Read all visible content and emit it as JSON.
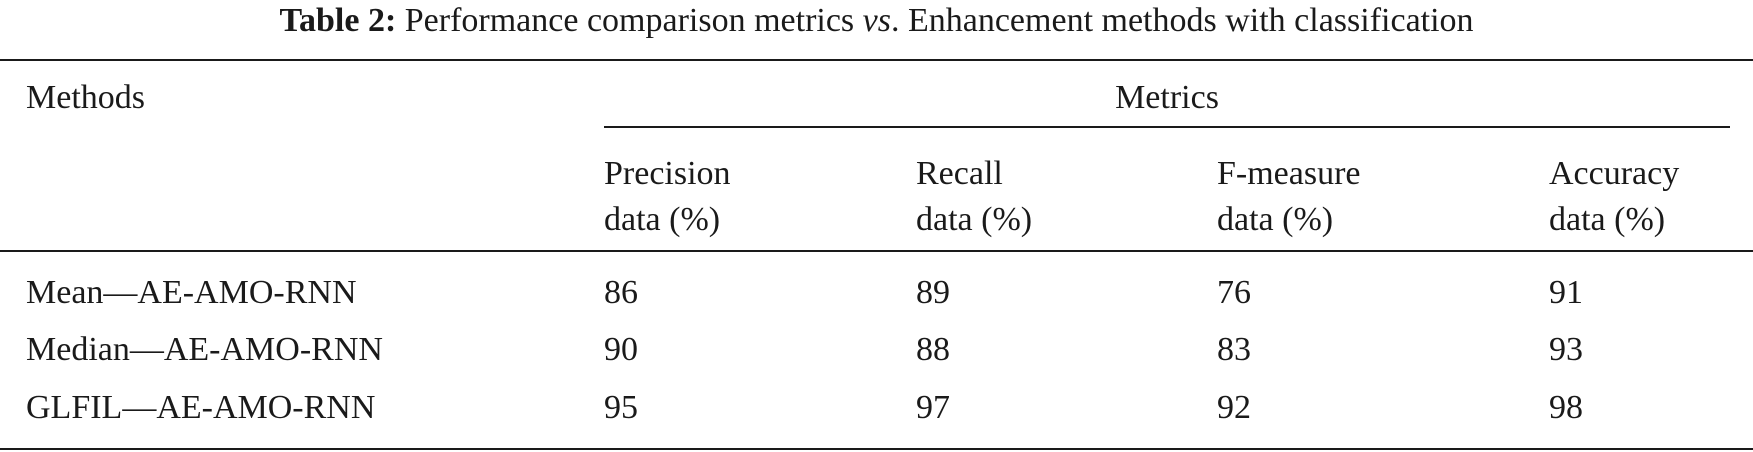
{
  "caption": {
    "label": "Table 2:",
    "text_before": "Performance comparison metrics ",
    "text_italic": "vs",
    "text_after": ". Enhancement methods with classification"
  },
  "table": {
    "methods_header": "Methods",
    "metrics_header": "Metrics",
    "sub_headers": [
      {
        "line1": "Precision",
        "line2": "data (%)"
      },
      {
        "line1": "Recall",
        "line2": "data (%)"
      },
      {
        "line1": "F-measure",
        "line2": "data (%)"
      },
      {
        "line1": "Accuracy",
        "line2": "data (%)"
      }
    ],
    "rows": [
      {
        "method": "Mean—AE-AMO-RNN",
        "precision": "86",
        "recall": "89",
        "f_measure": "76",
        "accuracy": "91"
      },
      {
        "method": "Median—AE-AMO-RNN",
        "precision": "90",
        "recall": "88",
        "f_measure": "83",
        "accuracy": "93"
      },
      {
        "method": "GLFIL—AE-AMO-RNN",
        "precision": "95",
        "recall": "97",
        "f_measure": "92",
        "accuracy": "98"
      }
    ]
  }
}
